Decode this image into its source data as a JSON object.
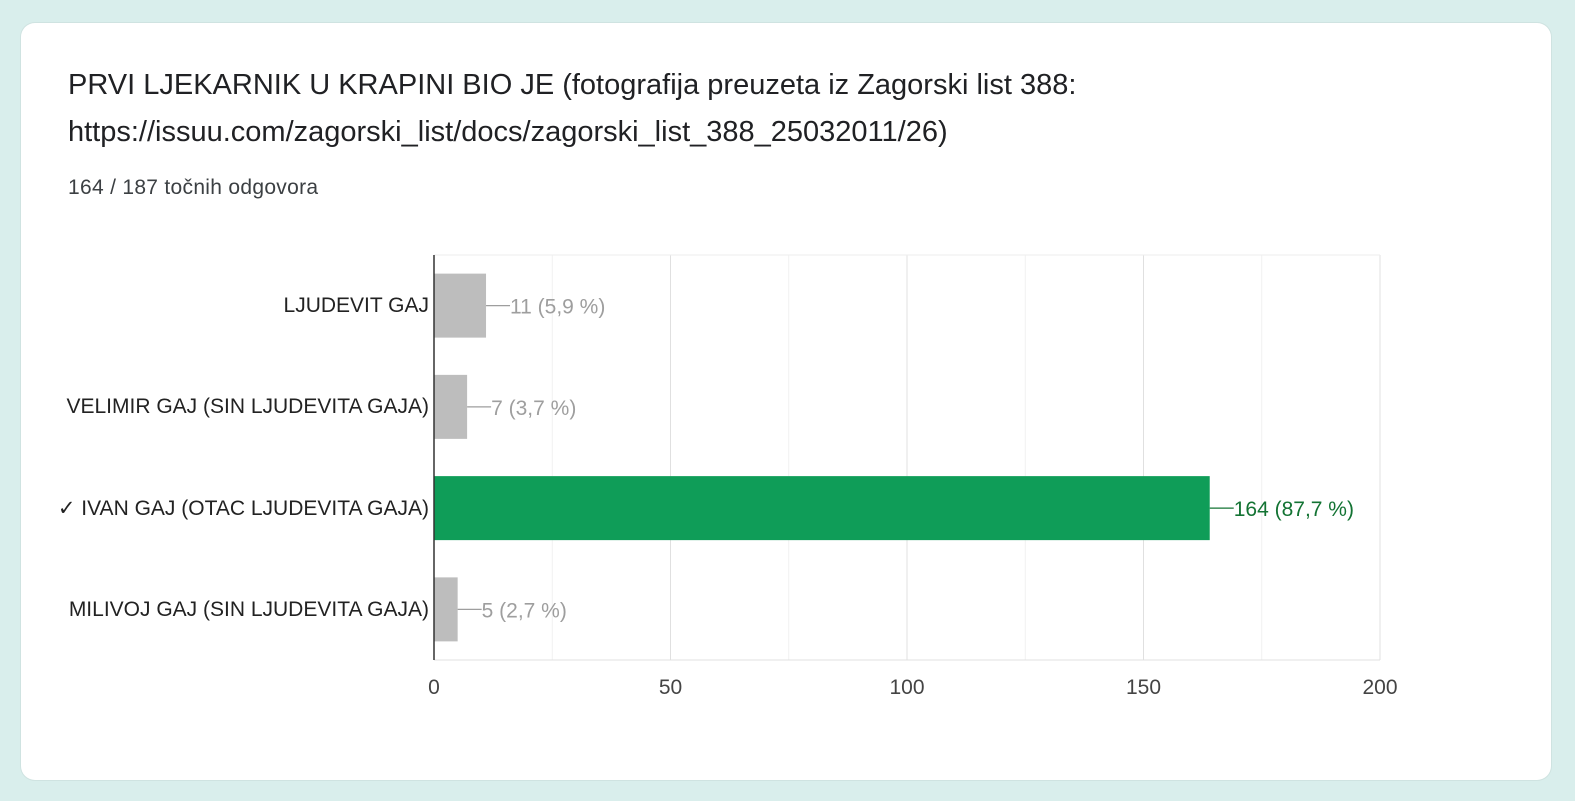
{
  "question": {
    "title": "PRVI LJEKARNIK U KRAPINI BIO JE (fotografija preuzeta iz Zagorski list 388: https://issuu.com/zagorski_list/docs/zagorski_list_388_25032011/26)",
    "summary": "164 / 187 točnih odgovora"
  },
  "colors": {
    "correct": "#0f9d58",
    "incorrect": "#bdbdbd",
    "correct_label": "#137333",
    "incorrect_label": "#9e9e9e"
  },
  "chart_data": {
    "type": "bar",
    "orientation": "horizontal",
    "categories": [
      "LJUDEVIT GAJ",
      "VELIMIR GAJ (SIN LJUDEVITA GAJA)",
      "✓ IVAN GAJ (OTAC LJUDEVITA GAJA)",
      "MILIVOJ GAJ (SIN LJUDEVITA GAJA)"
    ],
    "values": [
      11,
      7,
      164,
      5
    ],
    "data_labels": [
      "11 (5,9 %)",
      "7 (3,7 %)",
      "164 (87,7 %)",
      "5 (2,7 %)"
    ],
    "correct": [
      false,
      false,
      true,
      false
    ],
    "xlim": [
      0,
      200
    ],
    "xticks": [
      0,
      50,
      100,
      150,
      200
    ],
    "grid": true
  }
}
